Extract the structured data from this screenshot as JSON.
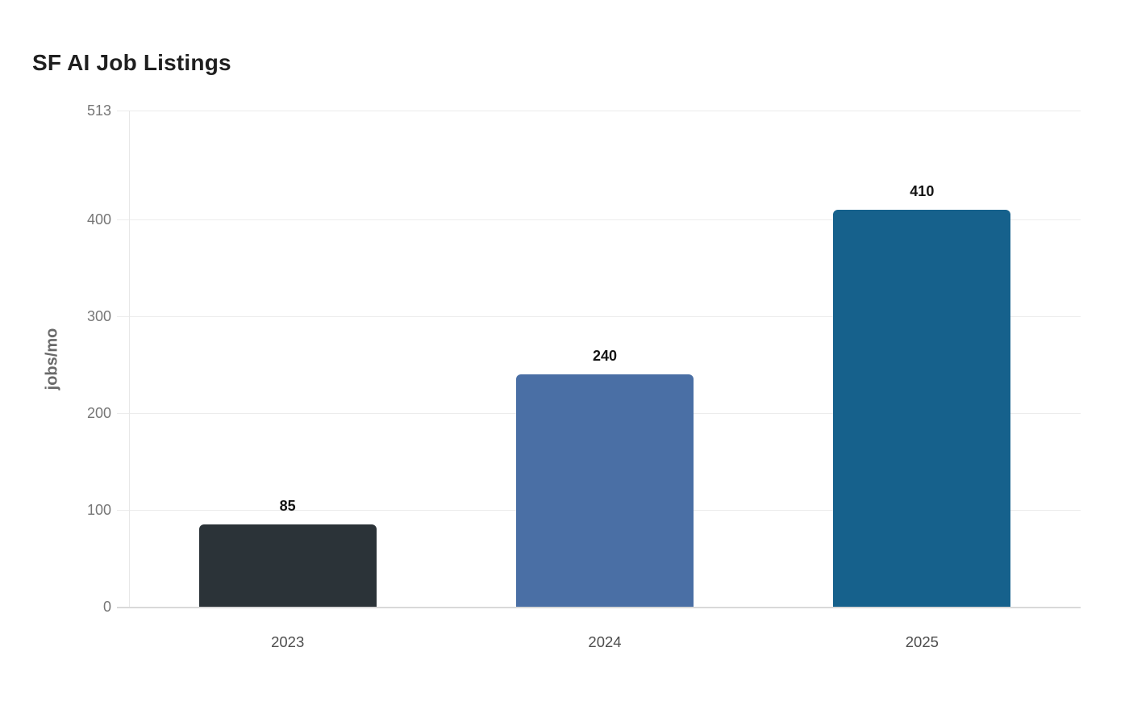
{
  "page": {
    "background": "#ffffff"
  },
  "chart_data": {
    "type": "bar",
    "title": "SF AI Job Listings",
    "xlabel": "",
    "ylabel": "jobs/mo",
    "categories": [
      "2023",
      "2024",
      "2025"
    ],
    "values": [
      85,
      240,
      410
    ],
    "value_labels": [
      "85",
      "240",
      "410"
    ],
    "bar_colors": [
      "#2b3338",
      "#4a6fa5",
      "#16618c"
    ],
    "yticks": [
      0,
      100,
      200,
      300,
      400,
      513
    ],
    "ylim": [
      0,
      513
    ],
    "grid": true,
    "legend": false
  },
  "style": {
    "title_color": "#1f1f1f",
    "ylabel_color": "#696969",
    "gridline_color": "#ececec",
    "baseline_color": "#d9d9d9",
    "axis_line_color": "#e8e8e8",
    "ytick_color": "#767676",
    "xtick_color": "#4d4d4d",
    "value_label_color": "#141414"
  }
}
